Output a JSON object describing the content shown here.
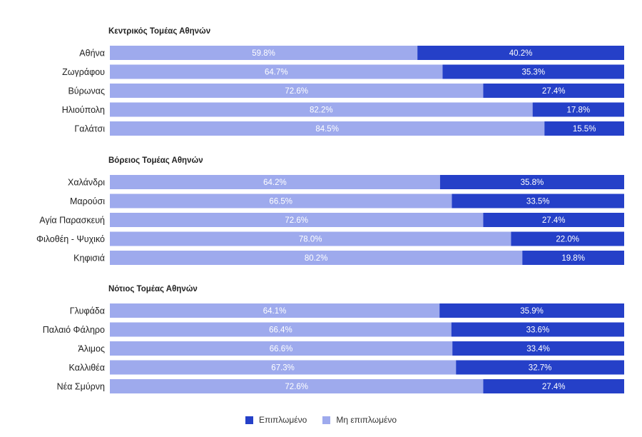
{
  "colors": {
    "furnished": "#2540c8",
    "unfurnished": "#9eaaed"
  },
  "chart_data": {
    "type": "bar",
    "orientation": "horizontal",
    "stacked": true,
    "percent_stacked": true,
    "xlim": [
      0,
      100
    ],
    "groups": [
      {
        "title": "Κεντρικός Τομέας Αθηνών",
        "categories": [
          "Αθήνα",
          "Ζωγράφου",
          "Βύρωνας",
          "Ηλιούπολη",
          "Γαλάτσι"
        ],
        "unfurnished": [
          59.8,
          64.7,
          72.6,
          82.2,
          84.5
        ],
        "furnished": [
          40.2,
          35.3,
          27.4,
          17.8,
          15.5
        ]
      },
      {
        "title": "Βόρειος Τομέας Αθηνών",
        "categories": [
          "Χαλάνδρι",
          "Μαρούσι",
          "Αγία Παρασκευή",
          "Φιλοθέη - Ψυχικό",
          "Κηφισιά"
        ],
        "unfurnished": [
          64.2,
          66.5,
          72.6,
          78.0,
          80.2
        ],
        "furnished": [
          35.8,
          33.5,
          27.4,
          22.0,
          19.8
        ]
      },
      {
        "title": "Νότιος Τομέας Αθηνών",
        "categories": [
          "Γλυφάδα",
          "Παλαιό Φάληρο",
          "Άλιμος",
          "Καλλιθέα",
          "Νέα Σμύρνη"
        ],
        "unfurnished": [
          64.1,
          66.4,
          66.6,
          67.3,
          72.6
        ],
        "furnished": [
          35.9,
          33.6,
          33.4,
          32.7,
          27.4
        ]
      }
    ],
    "legend": {
      "position": "bottom",
      "entries": [
        {
          "key": "furnished",
          "label": "Επιπλωμένο"
        },
        {
          "key": "unfurnished",
          "label": "Μη επιπλωμένο"
        }
      ]
    }
  }
}
